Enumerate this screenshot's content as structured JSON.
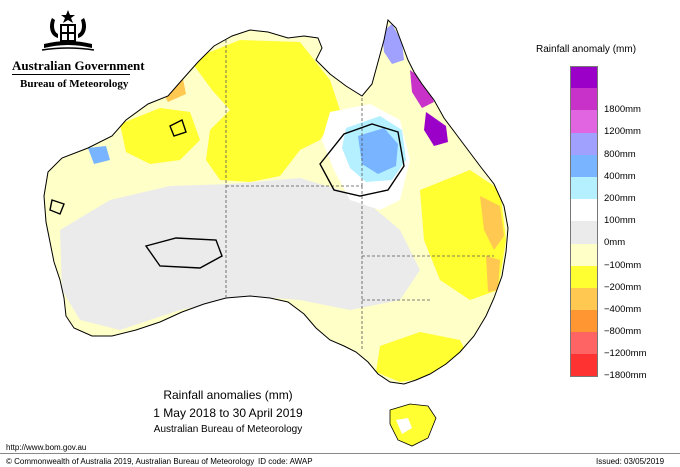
{
  "header": {
    "government": "Australian Government",
    "bureau": "Bureau of Meteorology",
    "crest_icon": "coat-of-arms-icon"
  },
  "legend": {
    "title": "Rainfall anomaly (mm)",
    "items": [
      {
        "label": "",
        "color": "#9b00c8"
      },
      {
        "label": "1800mm",
        "color": "#c832c8"
      },
      {
        "label": "1200mm",
        "color": "#e164e1"
      },
      {
        "label": "800mm",
        "color": "#a0a0ff"
      },
      {
        "label": "400mm",
        "color": "#78b4ff"
      },
      {
        "label": "200mm",
        "color": "#b4f0ff"
      },
      {
        "label": "100mm",
        "color": "#ffffff"
      },
      {
        "label": "0mm",
        "color": "#ebebeb"
      },
      {
        "label": "−100mm",
        "color": "#ffffc8"
      },
      {
        "label": "−200mm",
        "color": "#ffff32"
      },
      {
        "label": "−400mm",
        "color": "#ffc850"
      },
      {
        "label": "−800mm",
        "color": "#ff9632"
      },
      {
        "label": "−1200mm",
        "color": "#ff6464"
      },
      {
        "label": "−1800mm",
        "color": "#ff3232"
      }
    ]
  },
  "caption": {
    "line1": "Rainfall anomalies (mm)",
    "line2": "1 May 2018 to 30 April 2019",
    "line3": "Australian Bureau of Meteorology"
  },
  "footer": {
    "url": "http://www.bom.gov.au",
    "copyright": "© Commonwealth of Australia 2019, Australian Bureau of Meteorology",
    "id_code": "ID code: AWAP",
    "issued": "Issued: 03/05/2019"
  }
}
